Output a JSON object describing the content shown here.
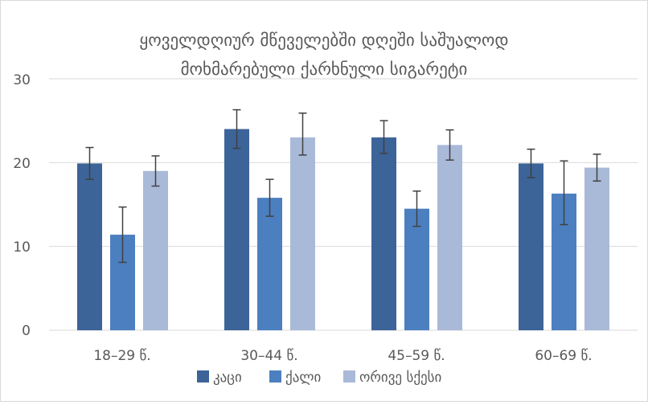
{
  "chart_data": {
    "type": "bar",
    "title_lines": [
      "ყოველდღიურ მწეველებში დღეში საშუალოდ",
      "მოხმარებული ქარხნული სიგარეტი"
    ],
    "categories": [
      "18–29 წ.",
      "30–44 წ.",
      "45–59 წ.",
      "60–69 წ."
    ],
    "series": [
      {
        "name": "კაცი",
        "color": "#3c6499",
        "values": [
          19.9,
          24.0,
          23.0,
          19.9
        ],
        "err_low": [
          18.0,
          21.7,
          21.1,
          18.2
        ],
        "err_high": [
          21.8,
          26.3,
          25.0,
          21.6
        ]
      },
      {
        "name": "ქალი",
        "color": "#4c7fbf",
        "values": [
          11.4,
          15.8,
          14.5,
          16.3
        ],
        "err_low": [
          8.1,
          13.6,
          12.4,
          12.6
        ],
        "err_high": [
          14.7,
          18.0,
          16.6,
          20.2
        ]
      },
      {
        "name": "ორივე სქესი",
        "color": "#a9b9d8",
        "values": [
          19.0,
          23.0,
          22.1,
          19.4
        ],
        "err_low": [
          17.2,
          20.9,
          20.3,
          17.8
        ],
        "err_high": [
          20.8,
          25.9,
          23.9,
          21.0
        ]
      }
    ],
    "ylim": [
      0,
      30
    ],
    "yticks": [
      "0",
      "10",
      "20",
      "30"
    ],
    "grid": true,
    "legend_position": "bottom",
    "xlabel": "",
    "ylabel": ""
  }
}
